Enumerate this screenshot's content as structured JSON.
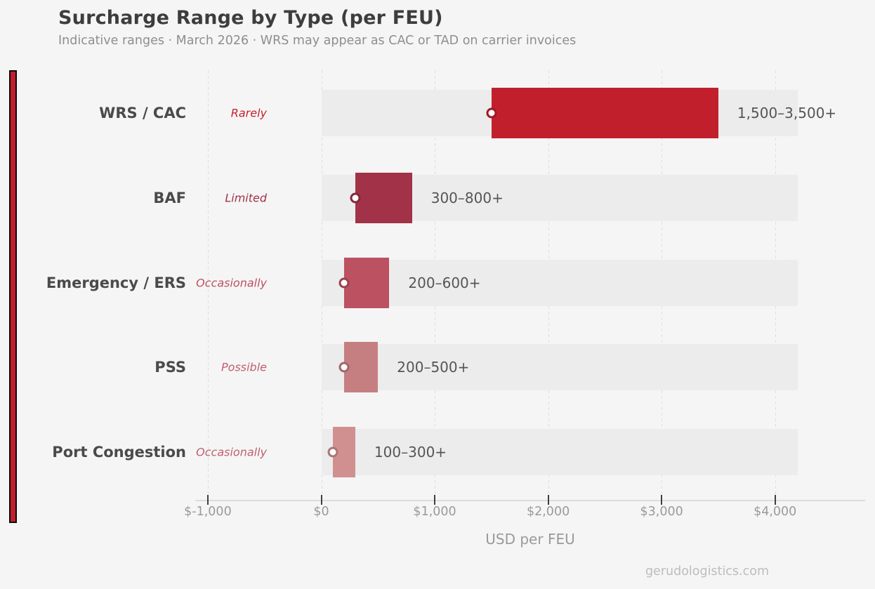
{
  "header": {
    "title": "Surcharge Range by Type (per FEU)",
    "subtitle": "Indicative ranges · March 2026 · WRS may appear as CAC or TAD on carrier invoices"
  },
  "chart_data": {
    "type": "bar",
    "orientation": "horizontal-range",
    "title": "Surcharge Range by Type (per FEU)",
    "categories": [
      "WRS / CAC",
      "BAF",
      "Emergency / ERS",
      "PSS",
      "Port Congestion"
    ],
    "frequency_labels": [
      "Rarely",
      "Limited",
      "Occasionally",
      "Possible",
      "Occasionally"
    ],
    "series": [
      {
        "name": "WRS / CAC",
        "range_low": 1500,
        "range_high": 3500,
        "label": "1,500–3,500+"
      },
      {
        "name": "BAF",
        "range_low": 300,
        "range_high": 800,
        "label": "300–800+"
      },
      {
        "name": "Emergency / ERS",
        "range_low": 200,
        "range_high": 600,
        "label": "200–600+"
      },
      {
        "name": "PSS",
        "range_low": 200,
        "range_high": 500,
        "label": "200–500+"
      },
      {
        "name": "Port Congestion",
        "range_low": 100,
        "range_high": 300,
        "label": "100–300+"
      }
    ],
    "bar_colors": [
      "#c21f2c",
      "#a13247",
      "#bc5162",
      "#c67f81",
      "#d09090"
    ],
    "frequency_label_colors": [
      "#c7202e",
      "#a13247",
      "#bc5162",
      "#c05f6e",
      "#c05f6e"
    ],
    "track_color": "#ececec",
    "track_max": 4200,
    "xticks": [
      -1000,
      0,
      1000,
      2000,
      3000,
      4000
    ],
    "xtick_labels": [
      "$-1,000",
      "$0",
      "$1,000",
      "$2,000",
      "$3,000",
      "$4,000"
    ],
    "xlabel": "USD per FEU",
    "xlim": [
      -1100,
      4800
    ],
    "grid": "vertical-dashed",
    "legend": "none"
  },
  "footer": {
    "watermark": "gerudologistics.com"
  },
  "colors": {
    "background": "#f5f5f5",
    "accent_stripe_fill": "#c21f2c",
    "accent_stripe_border": "#0b0b0b",
    "title_text": "#3d3d3d",
    "subtitle_text": "#8e8e8e",
    "category_text": "#4a4a4a",
    "value_text": "#555555",
    "axis_text": "#9a9a9a",
    "gridline": "#dedede",
    "marker_fill": "#ffffff"
  }
}
